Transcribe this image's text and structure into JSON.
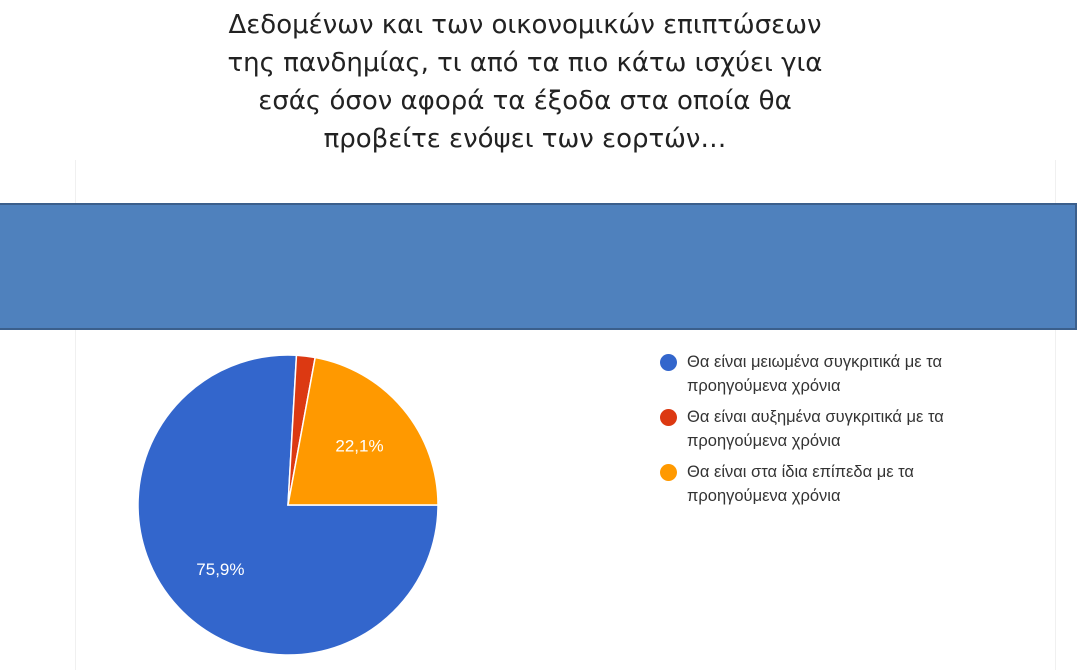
{
  "chart_data": {
    "type": "pie",
    "title_lines": [
      "Δεδομένων και των οικονομικών επιπτώσεων",
      "της πανδημίας, τι από τα πιο κάτω ισχύει για",
      "εσάς όσον αφορά τα έξοδα στα οποία θα",
      "προβείτε ενόψει των εορτών…"
    ],
    "slices": [
      {
        "label": "Θα είναι μειωμένα συγκριτικά με τα προηγούμενα χρόνια",
        "value": 75.9,
        "data_label": "75,9%",
        "color": "#3366cc"
      },
      {
        "label": "Θα είναι αυξημένα συγκριτικά με τα προηγούμενα χρόνια",
        "value": 2.0,
        "data_label": "",
        "color": "#dc3912"
      },
      {
        "label": "Θα είναι στα ίδια επίπεδα με τα προηγούμενα χρόνια",
        "value": 22.1,
        "data_label": "22,1%",
        "color": "#ff9900"
      }
    ],
    "legend_position": "right"
  },
  "banner_color": "#4f81bd"
}
